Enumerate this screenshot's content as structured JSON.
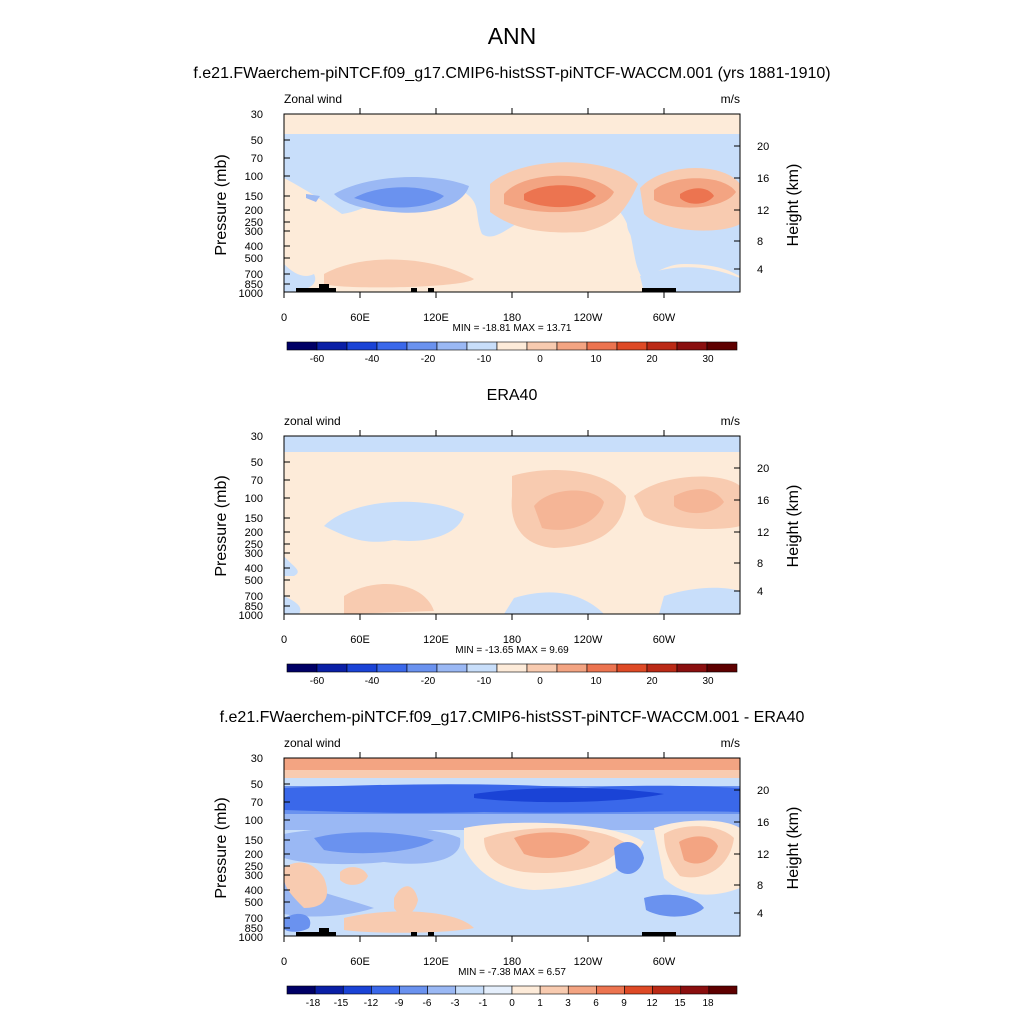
{
  "figure": {
    "main_title": "ANN"
  },
  "panels": [
    {
      "title": "f.e21.FWaerchem-piNTCF.f09_g17.CMIP6-histSST-piNTCF-WACCM.001 (yrs 1881-1910)",
      "left_label": "Zonal wind",
      "right_label": "m/s",
      "stats": "MIN = -18.81  MAX =  13.71",
      "colorbar_labels": [
        "-60",
        "-40",
        "-20",
        "-10",
        "0",
        "10",
        "20",
        "30"
      ],
      "topography": true
    },
    {
      "title": "ERA40",
      "left_label": "zonal wind",
      "right_label": "m/s",
      "stats": "MIN = -13.65  MAX =   9.69",
      "colorbar_labels": [
        "-60",
        "-40",
        "-20",
        "-10",
        "0",
        "10",
        "20",
        "30"
      ],
      "topography": false
    },
    {
      "title": "f.e21.FWaerchem-piNTCF.f09_g17.CMIP6-histSST-piNTCF-WACCM.001 - ERA40",
      "left_label": "zonal wind",
      "right_label": "m/s",
      "stats": "MIN =  -7.38  MAX =   6.57",
      "colorbar_labels": [
        "-18",
        "-15",
        "-12",
        "-9",
        "-6",
        "-3",
        "-1",
        "0",
        "1",
        "3",
        "6",
        "9",
        "12",
        "15",
        "18"
      ],
      "topography": true
    }
  ],
  "axes": {
    "ylabel": "Pressure (mb)",
    "y2label": "Height (km)",
    "pressure_ticks": [
      "30",
      "50",
      "70",
      "100",
      "150",
      "200",
      "250",
      "300",
      "400",
      "500",
      "700",
      "850",
      "1000"
    ],
    "height_ticks": [
      "20",
      "16",
      "12",
      "8",
      "4"
    ],
    "x_tick_labels": [
      "0",
      "60E",
      "120E",
      "180",
      "120W",
      "60W"
    ]
  },
  "colors": {
    "abs_scale": [
      "#000066",
      "#0a1fa6",
      "#1a43d6",
      "#3a68ea",
      "#6a92ef",
      "#9ab8f4",
      "#c8defa",
      "#fdebd9",
      "#f8cbb0",
      "#f3a482",
      "#ec7450",
      "#de4a26",
      "#bb2a16",
      "#8a0f0f",
      "#5e0000"
    ],
    "diff_scale": [
      "#000066",
      "#0a1fa6",
      "#1a43d6",
      "#3a68ea",
      "#6a92ef",
      "#9ab8f4",
      "#c8defa",
      "#e5effc",
      "#fdebd9",
      "#f8cbb0",
      "#f3a482",
      "#ec7450",
      "#de4a26",
      "#bb2a16",
      "#8a0f0f",
      "#5e0000"
    ]
  },
  "chart_data": [
    {
      "type": "heatmap",
      "title": "f.e21.FWaerchem-piNTCF.f09_g17.CMIP6-histSST-piNTCF-WACCM.001 (yrs 1881-1910)",
      "variable": "Zonal wind",
      "units": "m/s",
      "x": "longitude 0–360",
      "y": "pressure 1000–30 mb",
      "min": -18.81,
      "max": 13.71,
      "contour_levels": [
        -70,
        -60,
        -50,
        -40,
        -30,
        -20,
        -15,
        -10,
        -5,
        0,
        5,
        10,
        15,
        20,
        25,
        30,
        35
      ],
      "features": [
        {
          "lon": 75,
          "p": 150,
          "value": -15
        },
        {
          "lon": 210,
          "p": 170,
          "value": 13.7
        },
        {
          "lon": 315,
          "p": 170,
          "value": 12
        },
        {
          "lon": 90,
          "p": 700,
          "value": 5
        },
        {
          "lon": 250,
          "p": 200,
          "value": -5
        }
      ]
    },
    {
      "type": "heatmap",
      "title": "ERA40",
      "variable": "zonal wind",
      "units": "m/s",
      "min": -13.65,
      "max": 9.69,
      "contour_levels": [
        -70,
        -60,
        -50,
        -40,
        -30,
        -20,
        -15,
        -10,
        -5,
        0,
        5,
        10,
        15,
        20,
        25,
        30,
        35
      ],
      "features": [
        {
          "lon": 75,
          "p": 150,
          "value": -8
        },
        {
          "lon": 215,
          "p": 150,
          "value": 9.7
        },
        {
          "lon": 320,
          "p": 150,
          "value": 8
        },
        {
          "lon": 80,
          "p": 700,
          "value": 3
        }
      ]
    },
    {
      "type": "heatmap",
      "title": "f.e21.FWaerchem-piNTCF.f09_g17.CMIP6-histSST-piNTCF-WACCM.001 - ERA40",
      "variable": "zonal wind",
      "units": "m/s",
      "min": -7.38,
      "max": 6.57,
      "contour_levels": [
        -21,
        -18,
        -15,
        -12,
        -9,
        -6,
        -3,
        -1,
        0,
        1,
        3,
        6,
        9,
        12,
        15,
        18,
        21
      ],
      "features": [
        {
          "lon": 200,
          "p": 65,
          "value": -7.4
        },
        {
          "lon": 60,
          "p": 150,
          "value": -5
        },
        {
          "lon": 210,
          "p": 200,
          "value": 5
        },
        {
          "lon": 320,
          "p": 200,
          "value": 6.5
        },
        {
          "lon": 270,
          "p": 200,
          "value": -5
        }
      ]
    }
  ]
}
